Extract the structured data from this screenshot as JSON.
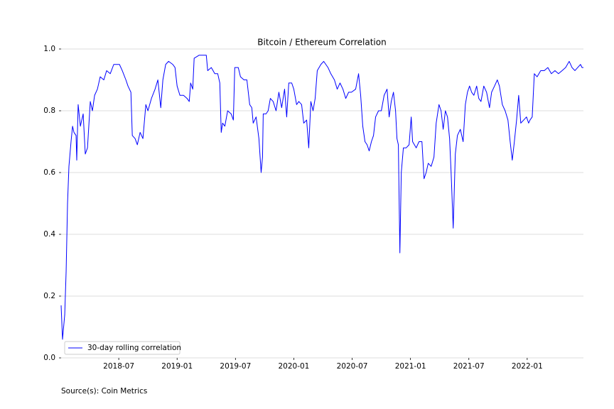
{
  "chart_data": {
    "type": "line",
    "title": "Bitcoin / Ethereum Correlation",
    "source": "Source(s): Coin Metrics",
    "x": [
      2018.006,
      2018.018,
      2018.037,
      2018.049,
      2018.061,
      2018.073,
      2018.091,
      2018.104,
      2018.116,
      2018.134,
      2018.14,
      2018.152,
      2018.171,
      2018.195,
      2018.213,
      2018.232,
      2018.256,
      2018.274,
      2018.293,
      2018.317,
      2018.341,
      2018.372,
      2018.396,
      2018.427,
      2018.457,
      2018.506,
      2018.53,
      2018.561,
      2018.579,
      2018.604,
      2018.616,
      2018.64,
      2018.659,
      2018.683,
      2018.707,
      2018.732,
      2018.75,
      2018.78,
      2018.811,
      2018.835,
      2018.86,
      2018.878,
      2018.902,
      2018.927,
      2018.963,
      2018.982,
      2019.0,
      2019.024,
      2019.055,
      2019.085,
      2019.104,
      2019.116,
      2019.134,
      2019.146,
      2019.189,
      2019.226,
      2019.25,
      2019.262,
      2019.293,
      2019.323,
      2019.348,
      2019.366,
      2019.378,
      2019.39,
      2019.409,
      2019.433,
      2019.463,
      2019.482,
      2019.494,
      2019.524,
      2019.543,
      2019.573,
      2019.598,
      2019.622,
      2019.64,
      2019.652,
      2019.677,
      2019.701,
      2019.72,
      2019.732,
      2019.738,
      2019.762,
      2019.78,
      2019.799,
      2019.823,
      2019.848,
      2019.872,
      2019.896,
      2019.921,
      2019.939,
      2019.957,
      2019.982,
      2020.0,
      2020.024,
      2020.043,
      2020.067,
      2020.085,
      2020.11,
      2020.128,
      2020.146,
      2020.165,
      2020.183,
      2020.201,
      2020.232,
      2020.256,
      2020.293,
      2020.317,
      2020.348,
      2020.372,
      2020.396,
      2020.421,
      2020.445,
      2020.47,
      2020.494,
      2020.53,
      2020.555,
      2020.573,
      2020.591,
      2020.61,
      2020.628,
      2020.646,
      2020.665,
      2020.683,
      2020.701,
      2020.726,
      2020.75,
      2020.774,
      2020.799,
      2020.817,
      2020.835,
      2020.854,
      2020.872,
      2020.884,
      2020.896,
      2020.909,
      2020.921,
      2020.939,
      2020.963,
      2020.988,
      2021.006,
      2021.018,
      2021.049,
      2021.073,
      2021.098,
      2021.116,
      2021.134,
      2021.152,
      2021.177,
      2021.201,
      2021.22,
      2021.244,
      2021.262,
      2021.28,
      2021.299,
      2021.317,
      2021.335,
      2021.348,
      2021.366,
      2021.384,
      2021.402,
      2021.427,
      2021.451,
      2021.47,
      2021.488,
      2021.506,
      2021.524,
      2021.543,
      2021.567,
      2021.585,
      2021.604,
      2021.628,
      2021.652,
      2021.677,
      2021.695,
      2021.72,
      2021.744,
      2021.762,
      2021.787,
      2021.811,
      2021.835,
      2021.854,
      2021.872,
      2021.89,
      2021.909,
      2021.927,
      2021.945,
      2021.97,
      2021.994,
      2022.012,
      2022.024,
      2022.043,
      2022.061,
      2022.085,
      2022.116,
      2022.146,
      2022.177,
      2022.207,
      2022.238,
      2022.268,
      2022.299,
      2022.329,
      2022.36,
      2022.384,
      2022.409,
      2022.433,
      2022.457,
      2022.47,
      2022.482
    ],
    "series": [
      {
        "name": "30-day rolling correlation",
        "color": "#0000ff",
        "values": [
          0.17,
          0.06,
          0.14,
          0.28,
          0.5,
          0.62,
          0.7,
          0.75,
          0.73,
          0.72,
          0.64,
          0.82,
          0.75,
          0.79,
          0.66,
          0.68,
          0.83,
          0.8,
          0.85,
          0.87,
          0.91,
          0.9,
          0.93,
          0.92,
          0.95,
          0.95,
          0.93,
          0.9,
          0.88,
          0.86,
          0.72,
          0.71,
          0.69,
          0.73,
          0.71,
          0.82,
          0.8,
          0.84,
          0.87,
          0.9,
          0.81,
          0.9,
          0.95,
          0.96,
          0.95,
          0.94,
          0.88,
          0.85,
          0.85,
          0.84,
          0.83,
          0.89,
          0.87,
          0.97,
          0.98,
          0.98,
          0.98,
          0.93,
          0.94,
          0.92,
          0.92,
          0.89,
          0.73,
          0.76,
          0.75,
          0.8,
          0.79,
          0.77,
          0.94,
          0.94,
          0.91,
          0.9,
          0.9,
          0.82,
          0.81,
          0.76,
          0.78,
          0.71,
          0.6,
          0.65,
          0.79,
          0.79,
          0.8,
          0.84,
          0.83,
          0.8,
          0.86,
          0.81,
          0.87,
          0.78,
          0.89,
          0.89,
          0.87,
          0.82,
          0.83,
          0.82,
          0.76,
          0.77,
          0.68,
          0.83,
          0.8,
          0.84,
          0.93,
          0.95,
          0.96,
          0.94,
          0.92,
          0.9,
          0.87,
          0.89,
          0.87,
          0.84,
          0.86,
          0.86,
          0.87,
          0.92,
          0.85,
          0.75,
          0.7,
          0.69,
          0.67,
          0.7,
          0.72,
          0.78,
          0.8,
          0.8,
          0.85,
          0.87,
          0.78,
          0.83,
          0.86,
          0.8,
          0.71,
          0.69,
          0.34,
          0.6,
          0.68,
          0.68,
          0.69,
          0.78,
          0.7,
          0.68,
          0.7,
          0.7,
          0.58,
          0.6,
          0.63,
          0.62,
          0.65,
          0.76,
          0.82,
          0.8,
          0.74,
          0.8,
          0.78,
          0.71,
          0.6,
          0.42,
          0.66,
          0.72,
          0.74,
          0.7,
          0.82,
          0.86,
          0.88,
          0.86,
          0.85,
          0.88,
          0.84,
          0.83,
          0.88,
          0.86,
          0.81,
          0.86,
          0.88,
          0.9,
          0.88,
          0.82,
          0.8,
          0.77,
          0.7,
          0.64,
          0.7,
          0.77,
          0.85,
          0.76,
          0.77,
          0.78,
          0.76,
          0.77,
          0.78,
          0.92,
          0.91,
          0.93,
          0.93,
          0.94,
          0.92,
          0.93,
          0.92,
          0.93,
          0.94,
          0.96,
          0.94,
          0.93,
          0.94,
          0.95,
          0.94,
          0.94
        ]
      }
    ],
    "xlim": [
      2018.006,
      2022.482
    ],
    "xticks": [
      {
        "value": 2018.5,
        "label": "2018-07"
      },
      {
        "value": 2019.0,
        "label": "2019-01"
      },
      {
        "value": 2019.5,
        "label": "2019-07"
      },
      {
        "value": 2020.0,
        "label": "2020-01"
      },
      {
        "value": 2020.5,
        "label": "2020-07"
      },
      {
        "value": 2021.0,
        "label": "2021-01"
      },
      {
        "value": 2021.5,
        "label": "2021-07"
      },
      {
        "value": 2022.0,
        "label": "2022-01"
      }
    ],
    "ylim": [
      0,
      1
    ],
    "yticks": [
      {
        "value": 0,
        "label": "0.0"
      },
      0.2,
      0.4,
      0.6,
      0.8,
      {
        "value": 1,
        "label": "1.0"
      }
    ],
    "grid": true,
    "legend": "lower left"
  }
}
